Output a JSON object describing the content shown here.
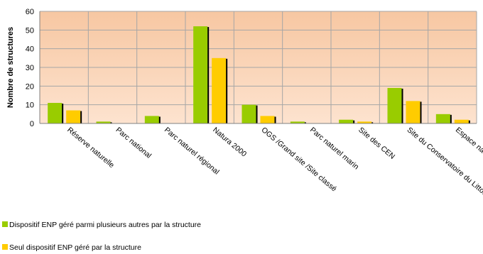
{
  "chart_data": {
    "type": "bar",
    "title": "",
    "xlabel": "",
    "ylabel": "Nombre de structures",
    "ylim": [
      0,
      60
    ],
    "yticks": [
      0,
      10,
      20,
      30,
      40,
      50,
      60
    ],
    "grid": true,
    "legend_position": "bottom-left",
    "categories": [
      "Réserve naturelle",
      "Parc national",
      "Parc naturel régional",
      "Natura 2000",
      "OGS /Grand site /Site classé",
      "Parc naturel marin",
      "Site des CEN",
      "Site du Conservatoire du Littoral",
      "Espace naturel sensible"
    ],
    "series": [
      {
        "name": "Dispositif ENP géré parmi plusieurs autres par la structure",
        "color": "#99cc00",
        "values": [
          11,
          1,
          4,
          52,
          10,
          1,
          2,
          19,
          5
        ]
      },
      {
        "name": "Seul dispositif ENP géré par la structure",
        "color": "#ffcc00",
        "values": [
          7,
          0,
          0,
          35,
          4,
          0,
          1,
          12,
          2
        ]
      }
    ]
  },
  "colors": {
    "plot_background_top": "#f7c7a2",
    "plot_background_bottom": "#fde3cf",
    "grid": "#a6a6a6",
    "bar_shadow": "#000000"
  }
}
